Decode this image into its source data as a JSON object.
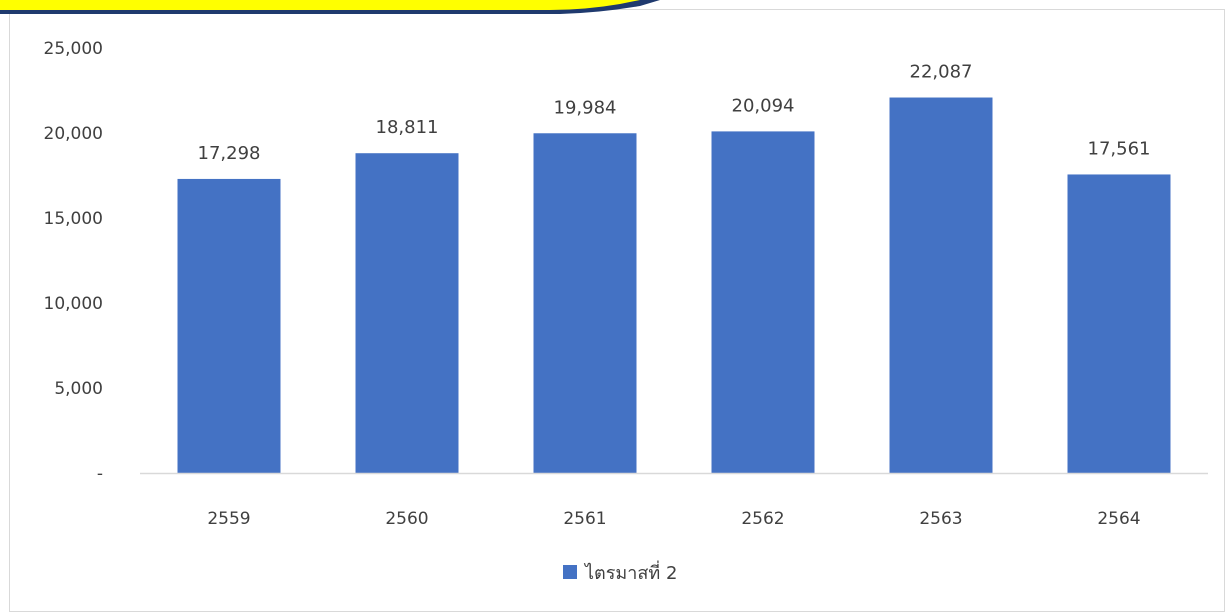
{
  "colors": {
    "bar": "#4472C4",
    "axis_line": "#D9D9D9",
    "text": "#404040",
    "frame": "#D9D9D9",
    "banner_yellow": "#FFFF00",
    "banner_border": "#1F3A6E"
  },
  "chart_data": {
    "type": "bar",
    "categories": [
      "2559",
      "2560",
      "2561",
      "2562",
      "2563",
      "2564"
    ],
    "series": [
      {
        "name": "ไตรมาสที่ 2",
        "values": [
          17298,
          18811,
          19984,
          20094,
          22087,
          17561
        ]
      }
    ],
    "data_labels": [
      "17,298",
      "18,811",
      "19,984",
      "20,094",
      "22,087",
      "17,561"
    ],
    "title": "",
    "xlabel": "",
    "ylabel": "",
    "ylim": [
      0,
      25000
    ],
    "yticks": [
      0,
      5000,
      10000,
      15000,
      20000,
      25000
    ],
    "ytick_labels": [
      "-",
      "5,000",
      "10,000",
      "15,000",
      "20,000",
      "25,000"
    ],
    "grid": false,
    "legend": "bottom-center"
  }
}
